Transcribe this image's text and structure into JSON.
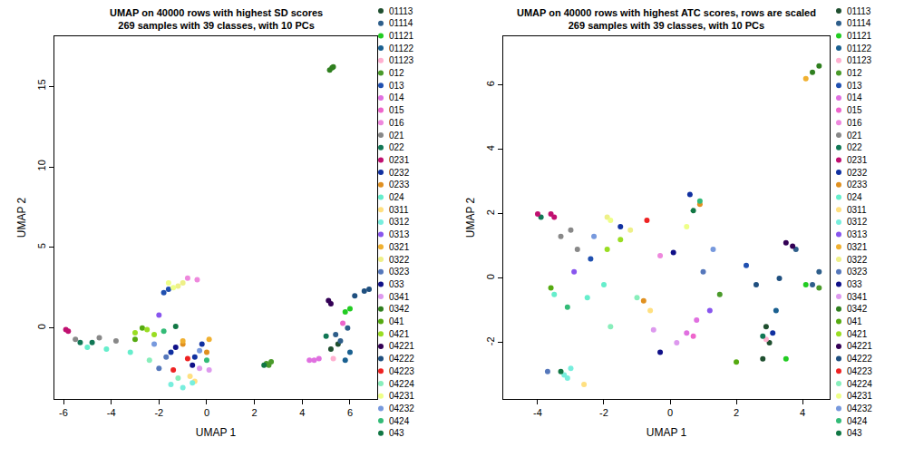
{
  "chart_data": [
    {
      "type": "scatter",
      "title": "UMAP on 40000 rows with highest SD scores\n269 samples with 39 classes, with 10 PCs",
      "x_label": "UMAP 1",
      "y_label": "UMAP 2",
      "xlim": [
        -6.38,
        7.14
      ],
      "ylim": [
        -4.4,
        18.1
      ],
      "xticks": [
        -6,
        -4,
        -2,
        0,
        2,
        4,
        6
      ],
      "yticks": [
        0,
        5,
        10,
        15
      ],
      "legend": "right",
      "marker": "circle",
      "series": [
        {
          "name": "01113",
          "color": "#1f4f2f",
          "x": [
            5.2,
            5.5
          ],
          "y": [
            -1.3,
            -1.0
          ]
        },
        {
          "name": "01114",
          "color": "#2e5e8a",
          "x": [
            5.4,
            5.9,
            5.6
          ],
          "y": [
            -0.4,
            0.0,
            -0.8
          ]
        },
        {
          "name": "01121",
          "color": "#22cc22",
          "x": [
            5.8,
            6.0
          ],
          "y": [
            1.0,
            1.2
          ]
        },
        {
          "name": "01122",
          "color": "#1a6090",
          "x": [
            5.8,
            6.0
          ],
          "y": [
            -2.0,
            -1.5
          ]
        },
        {
          "name": "01123",
          "color": "#ffb0d0",
          "x": [
            5.3
          ],
          "y": [
            -1.9
          ]
        },
        {
          "name": "012",
          "color": "#4a9a2a",
          "x": [
            2.5,
            2.7,
            2.6
          ],
          "y": [
            -2.2,
            -2.1,
            -2.3
          ]
        },
        {
          "name": "013",
          "color": "#2050b0",
          "x": [
            -1.8,
            -1.6
          ],
          "y": [
            2.2,
            2.4
          ]
        },
        {
          "name": "014",
          "color": "#e070e0",
          "x": [
            4.3,
            4.5,
            4.7
          ],
          "y": [
            -2.0,
            -2.0,
            -1.9
          ]
        },
        {
          "name": "015",
          "color": "#ee66cc",
          "x": [
            5.7
          ],
          "y": [
            0.3
          ]
        },
        {
          "name": "016",
          "color": "#ee88dd",
          "x": [
            -0.8,
            -0.4
          ],
          "y": [
            3.1,
            3.0
          ]
        },
        {
          "name": "021",
          "color": "#888888",
          "x": [
            -5.5,
            -4.5,
            -3.8
          ],
          "y": [
            -0.7,
            -0.6,
            -0.8
          ]
        },
        {
          "name": "022",
          "color": "#117755",
          "x": [
            -5.3,
            -4.8,
            5.0
          ],
          "y": [
            -0.9,
            -0.9,
            -0.5
          ]
        },
        {
          "name": "0231",
          "color": "#c01070",
          "x": [
            -5.9,
            -5.8
          ],
          "y": [
            -0.1,
            -0.2
          ]
        },
        {
          "name": "0232",
          "color": "#1030a0",
          "x": [
            -1.5,
            -0.5,
            -0.2
          ],
          "y": [
            -1.5,
            -1.8,
            -1.0
          ]
        },
        {
          "name": "0233",
          "color": "#e09020",
          "x": [
            -1.0,
            0.0
          ],
          "y": [
            -1.0,
            -1.5
          ]
        },
        {
          "name": "024",
          "color": "#66eecc",
          "x": [
            -5.0,
            -4.2,
            -3.2
          ],
          "y": [
            -1.2,
            -1.3,
            -1.5
          ]
        },
        {
          "name": "0311",
          "color": "#ffe080",
          "x": [
            -0.7,
            -0.5
          ],
          "y": [
            -3.0,
            -3.3
          ]
        },
        {
          "name": "0312",
          "color": "#77eedd",
          "x": [
            -1.5,
            -1.0,
            -0.6
          ],
          "y": [
            -3.5,
            -3.7,
            -3.4
          ]
        },
        {
          "name": "0313",
          "color": "#8855ee",
          "x": [
            -2.0
          ],
          "y": [
            0.8
          ]
        },
        {
          "name": "0321",
          "color": "#f0b030",
          "x": [
            -1.0,
            0.1
          ],
          "y": [
            -0.8,
            -0.7
          ]
        },
        {
          "name": "0322",
          "color": "#eef088",
          "x": [
            -1.2,
            -1.0
          ],
          "y": [
            2.6,
            2.8
          ]
        },
        {
          "name": "0323",
          "color": "#5577bb",
          "x": [
            -2.0,
            -1.7
          ],
          "y": [
            -2.5,
            -1.8
          ]
        },
        {
          "name": "033",
          "color": "#101088",
          "x": [
            -1.3,
            -0.6
          ],
          "y": [
            -1.2,
            -2.3
          ]
        },
        {
          "name": "0341",
          "color": "#dd99ee",
          "x": [
            -0.3,
            0.1
          ],
          "y": [
            -2.5,
            -2.6
          ]
        },
        {
          "name": "0342",
          "color": "#2f7f1f",
          "x": [
            5.15,
            5.25,
            5.3
          ],
          "y": [
            16.0,
            16.15,
            16.2
          ]
        },
        {
          "name": "041",
          "color": "#55aa11",
          "x": [
            -3.0,
            -2.7
          ],
          "y": [
            -0.7,
            0.0
          ]
        },
        {
          "name": "0421",
          "color": "#99dd22",
          "x": [
            -3.0,
            -2.5,
            -2.2
          ],
          "y": [
            -0.3,
            -0.1,
            -0.4
          ]
        },
        {
          "name": "04221",
          "color": "#330055",
          "x": [
            5.1,
            5.2
          ],
          "y": [
            1.7,
            1.5
          ]
        },
        {
          "name": "04222",
          "color": "#1f4f7f",
          "x": [
            6.2,
            6.6,
            6.8
          ],
          "y": [
            2.0,
            2.3,
            2.4
          ]
        },
        {
          "name": "04223",
          "color": "#ee2222",
          "x": [
            -0.8,
            -1.4
          ],
          "y": [
            -1.9,
            -2.6
          ]
        },
        {
          "name": "04224",
          "color": "#88eebb",
          "x": [
            -1.2,
            -2.4
          ],
          "y": [
            -3.1,
            -2.0
          ]
        },
        {
          "name": "04231",
          "color": "#eeff88",
          "x": [
            -1.6,
            -1.4
          ],
          "y": [
            2.8,
            2.5
          ]
        },
        {
          "name": "04232",
          "color": "#7799dd",
          "x": [
            -0.3,
            -2.2
          ],
          "y": [
            -1.4,
            -1.0
          ]
        },
        {
          "name": "0424",
          "color": "#33bb77",
          "x": [
            -1.8,
            0.0
          ],
          "y": [
            -0.2,
            -2.0
          ]
        },
        {
          "name": "043",
          "color": "#117744",
          "x": [
            2.4,
            -1.3
          ],
          "y": [
            -2.3,
            0.1
          ]
        }
      ]
    },
    {
      "type": "scatter",
      "title": "UMAP on 40000 rows with highest ATC scores, rows are scaled\n269 samples with 39 classes, with 10 PCs",
      "x_label": "UMAP 1",
      "y_label": "UMAP 2",
      "xlim": [
        -5.04,
        4.82
      ],
      "ylim": [
        -3.75,
        7.52
      ],
      "xticks": [
        -4,
        -2,
        0,
        2,
        4
      ],
      "yticks": [
        -2,
        0,
        2,
        4,
        6
      ],
      "legend": "right",
      "marker": "circle",
      "series": [
        {
          "name": "01113",
          "color": "#1f4f2f",
          "x": [
            2.9,
            3.0,
            2.8
          ],
          "y": [
            -1.5,
            -2.0,
            -2.5
          ]
        },
        {
          "name": "01114",
          "color": "#2e5e8a",
          "x": [
            4.3,
            3.8,
            4.5
          ],
          "y": [
            -0.2,
            0.9,
            0.2
          ]
        },
        {
          "name": "01121",
          "color": "#22cc22",
          "x": [
            4.1,
            3.5
          ],
          "y": [
            -0.2,
            -2.5
          ]
        },
        {
          "name": "01122",
          "color": "#1a6090",
          "x": [
            3.2
          ],
          "y": [
            -1.0
          ]
        },
        {
          "name": "01123",
          "color": "#ffb0d0",
          "x": [
            2.9
          ],
          "y": [
            -1.9
          ]
        },
        {
          "name": "012",
          "color": "#4a9a2a",
          "x": [
            4.5,
            1.5
          ],
          "y": [
            -0.3,
            -0.5
          ]
        },
        {
          "name": "013",
          "color": "#2050b0",
          "x": [
            2.3,
            -2.4
          ],
          "y": [
            0.4,
            0.6
          ]
        },
        {
          "name": "014",
          "color": "#e070e0",
          "x": [
            0.8,
            0.5
          ],
          "y": [
            -1.3,
            -1.7
          ]
        },
        {
          "name": "015",
          "color": "#ee66cc",
          "x": [
            0.7
          ],
          "y": [
            -1.8
          ]
        },
        {
          "name": "016",
          "color": "#ee88dd",
          "x": [
            -0.3
          ],
          "y": [
            0.7
          ]
        },
        {
          "name": "021",
          "color": "#888888",
          "x": [
            -3.3,
            -3.0,
            -2.8
          ],
          "y": [
            1.3,
            1.5,
            0.9
          ]
        },
        {
          "name": "022",
          "color": "#117755",
          "x": [
            -3.9,
            2.8
          ],
          "y": [
            1.9,
            -1.8
          ]
        },
        {
          "name": "0231",
          "color": "#c01070",
          "x": [
            -4.0,
            -3.6,
            -3.5
          ],
          "y": [
            2.0,
            2.0,
            1.9
          ]
        },
        {
          "name": "0232",
          "color": "#1030a0",
          "x": [
            0.6,
            -1.5,
            3.1
          ],
          "y": [
            2.6,
            1.6,
            -1.7
          ]
        },
        {
          "name": "0233",
          "color": "#e09020",
          "x": [
            0.9,
            -0.8
          ],
          "y": [
            2.3,
            -0.7
          ]
        },
        {
          "name": "024",
          "color": "#66eecc",
          "x": [
            -3.5,
            -2.5,
            -2.0
          ],
          "y": [
            -0.5,
            -0.6,
            -0.2
          ]
        },
        {
          "name": "0311",
          "color": "#ffe080",
          "x": [
            -2.6,
            -0.6
          ],
          "y": [
            -3.3,
            -1.0
          ]
        },
        {
          "name": "0312",
          "color": "#77eedd",
          "x": [
            -3.2,
            -3.0,
            -3.1
          ],
          "y": [
            -3.0,
            -2.8,
            -3.1
          ]
        },
        {
          "name": "0313",
          "color": "#8855ee",
          "x": [
            -2.9,
            1.2
          ],
          "y": [
            0.2,
            -1.0
          ]
        },
        {
          "name": "0321",
          "color": "#f0b030",
          "x": [
            4.1
          ],
          "y": [
            6.2
          ]
        },
        {
          "name": "0322",
          "color": "#eef088",
          "x": [
            -1.9,
            -1.2
          ],
          "y": [
            1.9,
            1.5
          ]
        },
        {
          "name": "0323",
          "color": "#5577bb",
          "x": [
            -3.7,
            1.0
          ],
          "y": [
            -2.9,
            0.2
          ]
        },
        {
          "name": "033",
          "color": "#101088",
          "x": [
            0.1,
            -0.3
          ],
          "y": [
            0.8,
            -2.3
          ]
        },
        {
          "name": "0341",
          "color": "#dd99ee",
          "x": [
            -0.5,
            0.2
          ],
          "y": [
            -1.6,
            -2.0
          ]
        },
        {
          "name": "0342",
          "color": "#2f7f1f",
          "x": [
            4.3,
            4.5
          ],
          "y": [
            6.4,
            6.6
          ]
        },
        {
          "name": "041",
          "color": "#55aa11",
          "x": [
            -3.6,
            2.0
          ],
          "y": [
            -0.3,
            -2.6
          ]
        },
        {
          "name": "0421",
          "color": "#99dd22",
          "x": [
            -1.9,
            -1.5
          ],
          "y": [
            0.9,
            1.2
          ]
        },
        {
          "name": "04221",
          "color": "#330055",
          "x": [
            3.5,
            3.7
          ],
          "y": [
            1.1,
            1.0
          ]
        },
        {
          "name": "04222",
          "color": "#1f4f7f",
          "x": [
            3.3,
            2.6
          ],
          "y": [
            0.0,
            -0.2
          ]
        },
        {
          "name": "04223",
          "color": "#ee2222",
          "x": [
            -0.7
          ],
          "y": [
            1.8
          ]
        },
        {
          "name": "04224",
          "color": "#88eebb",
          "x": [
            -1.0,
            -1.8
          ],
          "y": [
            -0.6,
            -1.5
          ]
        },
        {
          "name": "04231",
          "color": "#eeff88",
          "x": [
            -1.8,
            0.5
          ],
          "y": [
            1.8,
            1.6
          ]
        },
        {
          "name": "04232",
          "color": "#7799dd",
          "x": [
            -2.3,
            1.3
          ],
          "y": [
            1.3,
            0.9
          ]
        },
        {
          "name": "0424",
          "color": "#33bb77",
          "x": [
            -3.1,
            0.9
          ],
          "y": [
            -0.9,
            2.4
          ]
        },
        {
          "name": "043",
          "color": "#117744",
          "x": [
            0.7,
            -3.3
          ],
          "y": [
            2.1,
            -2.9
          ]
        }
      ]
    }
  ]
}
